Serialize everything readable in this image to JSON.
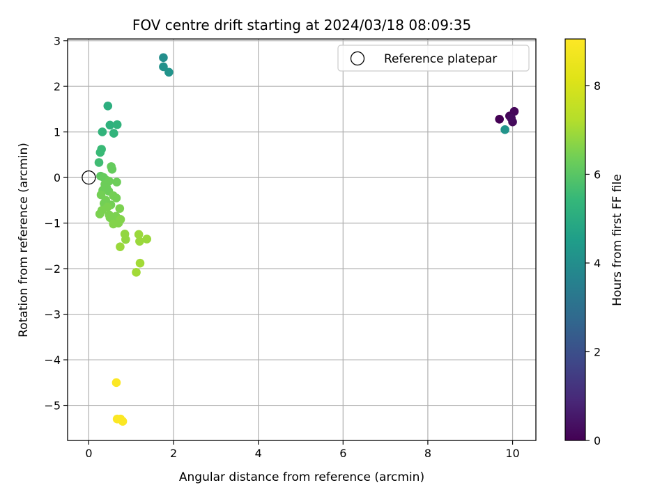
{
  "chart_data": {
    "type": "scatter",
    "title": "FOV centre drift starting at 2024/03/18 08:09:35",
    "xlabel": "Angular distance from reference (arcmin)",
    "ylabel": "Rotation from reference (arcmin)",
    "xlim": [
      -0.5,
      10.55
    ],
    "ylim": [
      -5.77,
      3.04
    ],
    "xticks": [
      0,
      2,
      4,
      6,
      8,
      10
    ],
    "yticks": [
      3,
      2,
      1,
      0,
      -1,
      -2,
      -3,
      -4,
      -5
    ],
    "xtick_labels": [
      "0",
      "2",
      "4",
      "6",
      "8",
      "10"
    ],
    "ytick_labels": [
      "3",
      "2",
      "1",
      "0",
      "−1",
      "−2",
      "−3",
      "−4",
      "−5"
    ],
    "grid": true,
    "colormap": "viridis",
    "colorbar": {
      "label": "Hours from first FF file",
      "range": [
        0,
        9.05
      ],
      "ticks": [
        0,
        2,
        4,
        6,
        8
      ],
      "tick_labels": [
        "0",
        "2",
        "4",
        "6",
        "8"
      ]
    },
    "legend": {
      "location": "top-right",
      "entries": [
        {
          "label": "Reference platepar",
          "marker": "hollow-circle"
        }
      ]
    },
    "reference_point": {
      "x": 0,
      "y": 0
    },
    "points": [
      {
        "x": 9.69,
        "y": 1.28,
        "c": 0.0
      },
      {
        "x": 9.93,
        "y": 1.35,
        "c": 0.1
      },
      {
        "x": 10.04,
        "y": 1.45,
        "c": 0.15
      },
      {
        "x": 10.0,
        "y": 1.22,
        "c": 0.2
      },
      {
        "x": 9.97,
        "y": 1.3,
        "c": 0.25
      },
      {
        "x": 9.82,
        "y": 1.05,
        "c": 4.2
      },
      {
        "x": 1.76,
        "y": 2.63,
        "c": 4.0
      },
      {
        "x": 1.76,
        "y": 2.43,
        "c": 4.1
      },
      {
        "x": 1.89,
        "y": 2.31,
        "c": 4.2
      },
      {
        "x": 0.45,
        "y": 1.57,
        "c": 5.1
      },
      {
        "x": 0.5,
        "y": 1.15,
        "c": 5.2
      },
      {
        "x": 0.67,
        "y": 1.16,
        "c": 5.25
      },
      {
        "x": 0.32,
        "y": 1.0,
        "c": 5.3
      },
      {
        "x": 0.59,
        "y": 0.97,
        "c": 5.3
      },
      {
        "x": 0.3,
        "y": 0.62,
        "c": 5.5
      },
      {
        "x": 0.27,
        "y": 0.55,
        "c": 5.5
      },
      {
        "x": 0.24,
        "y": 0.33,
        "c": 5.6
      },
      {
        "x": 0.53,
        "y": 0.24,
        "c": 6.2
      },
      {
        "x": 0.55,
        "y": 0.18,
        "c": 6.2
      },
      {
        "x": 0.28,
        "y": 0.03,
        "c": 6.1
      },
      {
        "x": 0.35,
        "y": 0.0,
        "c": 6.2
      },
      {
        "x": 0.4,
        "y": -0.05,
        "c": 6.2
      },
      {
        "x": 0.48,
        "y": -0.08,
        "c": 6.3
      },
      {
        "x": 0.66,
        "y": -0.1,
        "c": 6.3
      },
      {
        "x": 0.38,
        "y": -0.15,
        "c": 6.3
      },
      {
        "x": 0.42,
        "y": -0.22,
        "c": 6.3
      },
      {
        "x": 0.33,
        "y": -0.28,
        "c": 6.3
      },
      {
        "x": 0.47,
        "y": -0.3,
        "c": 6.3
      },
      {
        "x": 0.29,
        "y": -0.38,
        "c": 6.4
      },
      {
        "x": 0.58,
        "y": -0.4,
        "c": 6.4
      },
      {
        "x": 0.65,
        "y": -0.45,
        "c": 6.4
      },
      {
        "x": 0.4,
        "y": -0.5,
        "c": 6.4
      },
      {
        "x": 0.36,
        "y": -0.57,
        "c": 6.4
      },
      {
        "x": 0.52,
        "y": -0.6,
        "c": 6.4
      },
      {
        "x": 0.44,
        "y": -0.65,
        "c": 6.5
      },
      {
        "x": 0.73,
        "y": -0.68,
        "c": 6.5
      },
      {
        "x": 0.31,
        "y": -0.72,
        "c": 6.5
      },
      {
        "x": 0.26,
        "y": -0.8,
        "c": 6.5
      },
      {
        "x": 0.48,
        "y": -0.82,
        "c": 6.5
      },
      {
        "x": 0.5,
        "y": -0.88,
        "c": 6.5
      },
      {
        "x": 0.64,
        "y": -0.85,
        "c": 6.5
      },
      {
        "x": 0.56,
        "y": -0.92,
        "c": 6.5
      },
      {
        "x": 0.6,
        "y": -0.95,
        "c": 6.5
      },
      {
        "x": 0.75,
        "y": -0.92,
        "c": 6.6
      },
      {
        "x": 0.58,
        "y": -1.02,
        "c": 6.6
      },
      {
        "x": 0.7,
        "y": -1.0,
        "c": 6.6
      },
      {
        "x": 0.85,
        "y": -1.24,
        "c": 6.8
      },
      {
        "x": 0.87,
        "y": -1.36,
        "c": 6.8
      },
      {
        "x": 1.18,
        "y": -1.25,
        "c": 6.9
      },
      {
        "x": 1.2,
        "y": -1.4,
        "c": 6.9
      },
      {
        "x": 1.37,
        "y": -1.35,
        "c": 6.9
      },
      {
        "x": 0.74,
        "y": -1.52,
        "c": 6.9
      },
      {
        "x": 1.21,
        "y": -1.88,
        "c": 7.0
      },
      {
        "x": 1.12,
        "y": -2.08,
        "c": 7.0
      },
      {
        "x": 0.65,
        "y": -4.5,
        "c": 9.0
      },
      {
        "x": 0.67,
        "y": -5.3,
        "c": 9.0
      },
      {
        "x": 0.75,
        "y": -5.3,
        "c": 9.0
      },
      {
        "x": 0.8,
        "y": -5.35,
        "c": 9.0
      }
    ]
  }
}
